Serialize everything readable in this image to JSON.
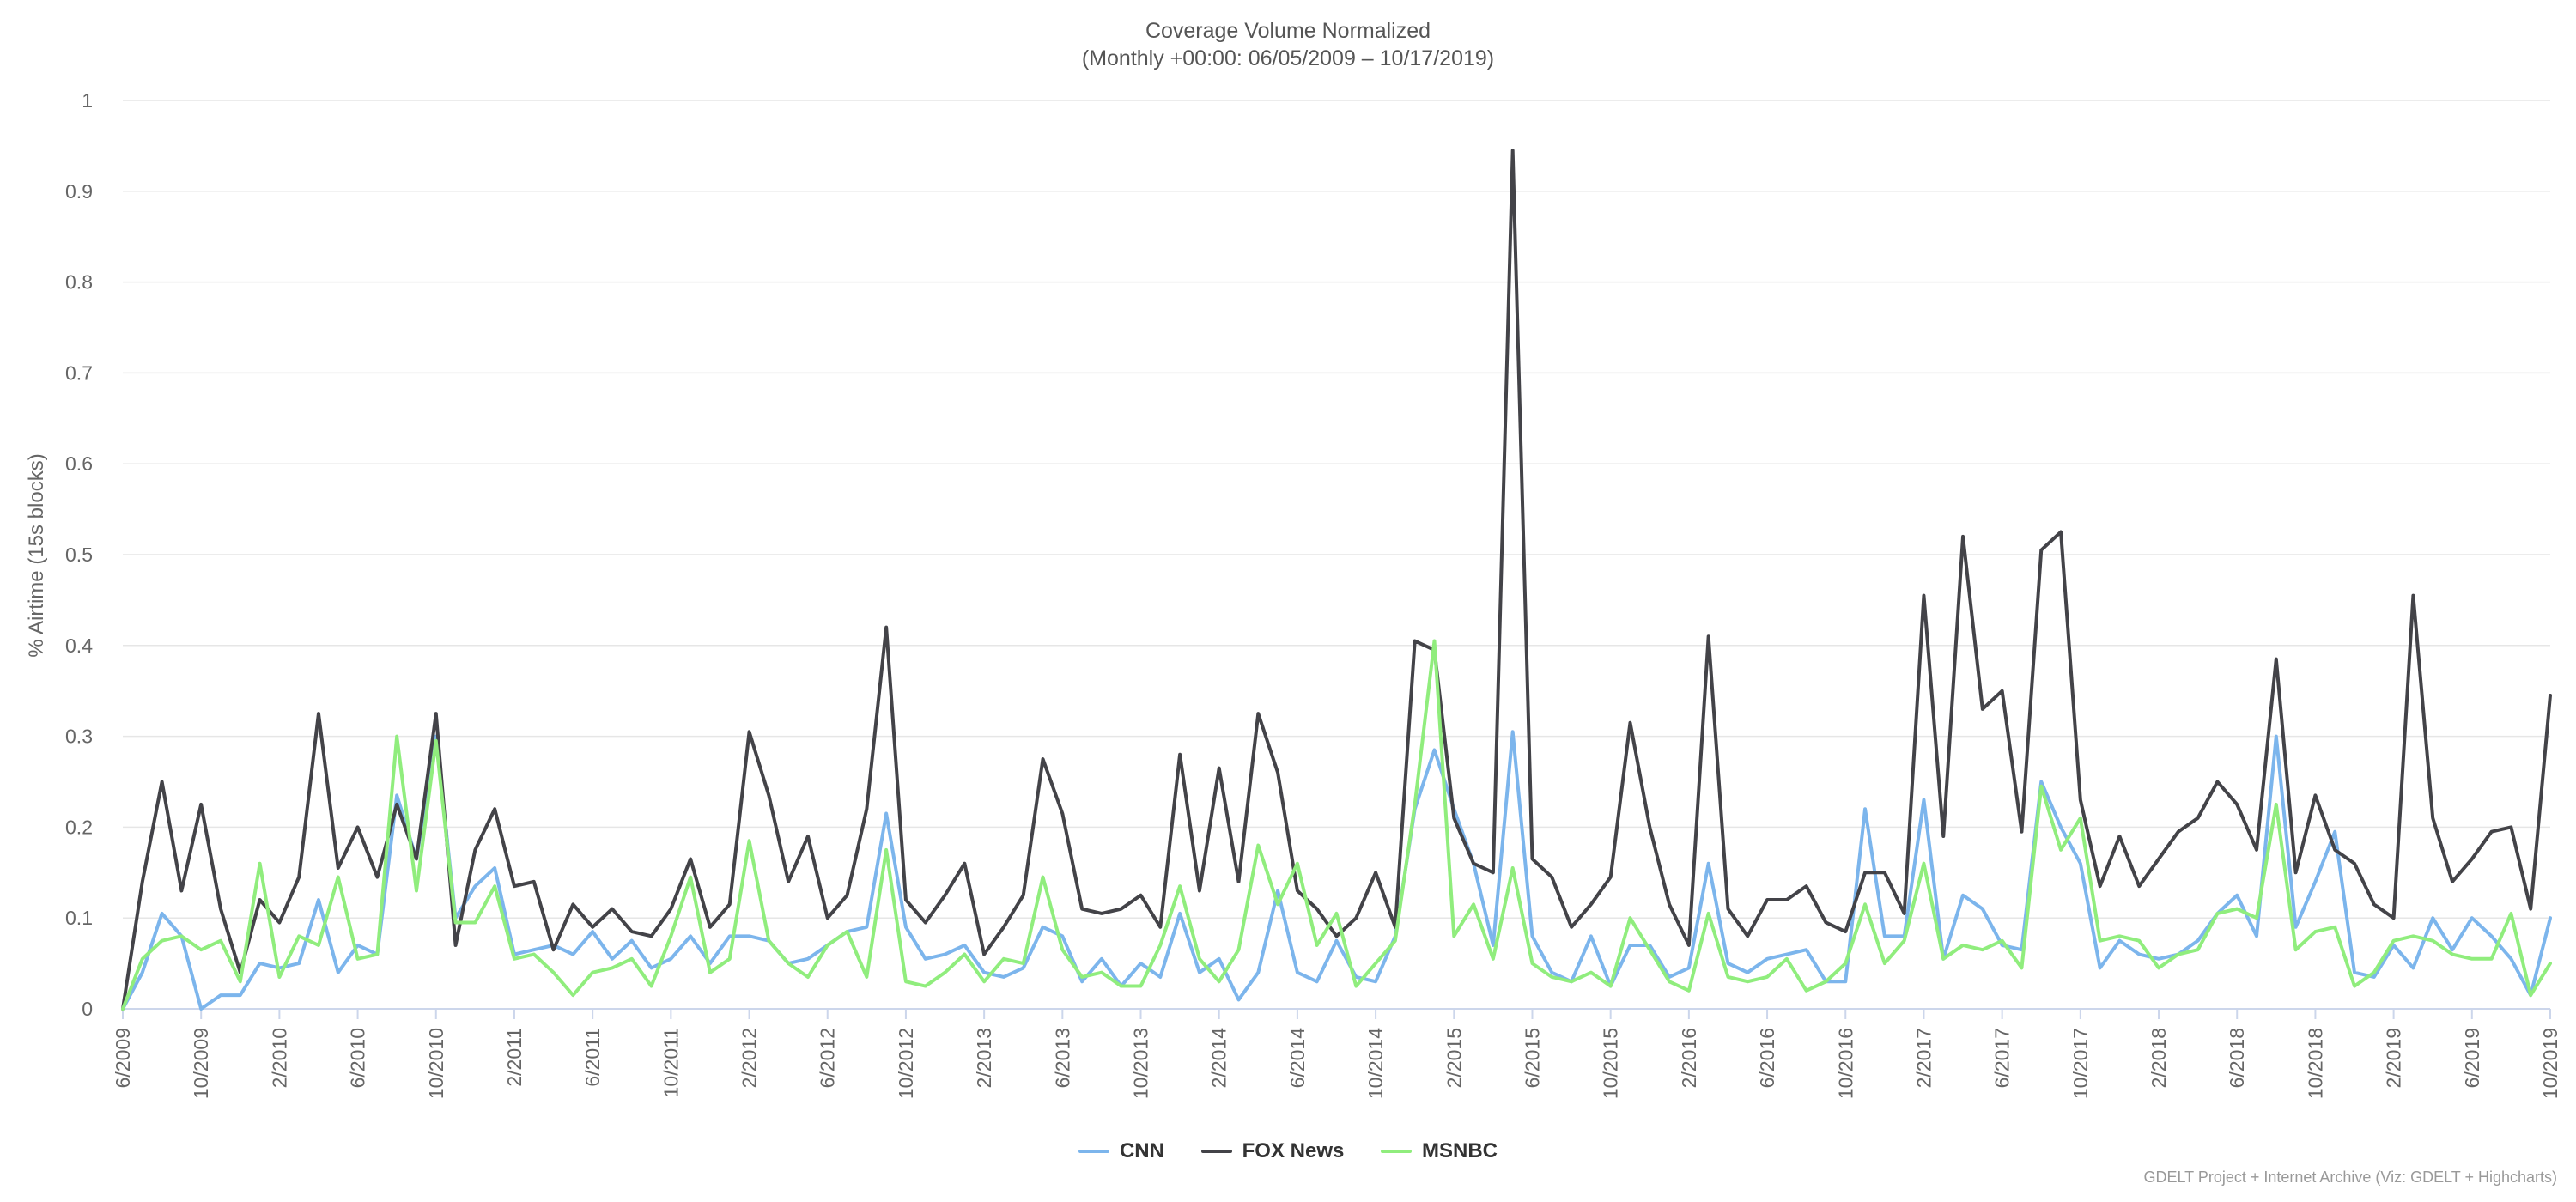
{
  "title_line1": "Coverage Volume Normalized",
  "title_line2": "(Monthly +00:00: 06/05/2009 – 10/17/2019)",
  "credits": "GDELT Project + Internet Archive (Viz: GDELT + Highcharts)",
  "chart_data": {
    "type": "line",
    "ylabel": "% Airtime (15s blocks)",
    "xlabel": "",
    "ylim": [
      0,
      1
    ],
    "yticks": [
      0,
      0.1,
      0.2,
      0.3,
      0.4,
      0.5,
      0.6,
      0.7,
      0.8,
      0.9,
      1
    ],
    "ytick_labels": [
      "0",
      "0.1",
      "0.2",
      "0.3",
      "0.4",
      "0.5",
      "0.6",
      "0.7",
      "0.8",
      "0.9",
      "1"
    ],
    "x_start": "6/2009",
    "x_end": "10/2019",
    "xtick_labels": [
      "6/2009",
      "10/2009",
      "2/2010",
      "6/2010",
      "10/2010",
      "2/2011",
      "6/2011",
      "10/2011",
      "2/2012",
      "6/2012",
      "10/2012",
      "2/2013",
      "6/2013",
      "10/2013",
      "2/2014",
      "6/2014",
      "10/2014",
      "2/2015",
      "6/2015",
      "10/2015",
      "2/2016",
      "6/2016",
      "10/2016",
      "2/2017",
      "6/2017",
      "10/2017",
      "2/2018",
      "6/2018",
      "10/2018",
      "2/2019",
      "6/2019",
      "10/2019"
    ],
    "grid": true,
    "legend_position": "bottom-center",
    "series": [
      {
        "name": "CNN",
        "color": "#7cb5ec",
        "values": [
          0,
          0.04,
          0.105,
          0.08,
          0,
          0.015,
          0.015,
          0.05,
          0.045,
          0.05,
          0.12,
          0.04,
          0.07,
          0.06,
          0.235,
          0.165,
          0.3,
          0.1,
          0.135,
          0.155,
          0.06,
          0.065,
          0.07,
          0.06,
          0.085,
          0.055,
          0.075,
          0.045,
          0.055,
          0.08,
          0.05,
          0.08,
          0.08,
          0.075,
          0.05,
          0.055,
          0.07,
          0.085,
          0.09,
          0.215,
          0.09,
          0.055,
          0.06,
          0.07,
          0.04,
          0.035,
          0.045,
          0.09,
          0.08,
          0.03,
          0.055,
          0.025,
          0.05,
          0.035,
          0.105,
          0.04,
          0.055,
          0.01,
          0.04,
          0.13,
          0.04,
          0.03,
          0.075,
          0.035,
          0.03,
          0.08,
          0.22,
          0.285,
          0.22,
          0.16,
          0.07,
          0.305,
          0.08,
          0.04,
          0.03,
          0.08,
          0.025,
          0.07,
          0.07,
          0.035,
          0.045,
          0.16,
          0.05,
          0.04,
          0.055,
          0.06,
          0.065,
          0.03,
          0.03,
          0.22,
          0.08,
          0.08,
          0.23,
          0.055,
          0.125,
          0.11,
          0.07,
          0.065,
          0.25,
          0.2,
          0.16,
          0.045,
          0.075,
          0.06,
          0.055,
          0.06,
          0.075,
          0.105,
          0.125,
          0.08,
          0.3,
          0.09,
          0.14,
          0.195,
          0.04,
          0.035,
          0.07,
          0.045,
          0.1,
          0.065,
          0.1,
          0.08,
          0.055,
          0.015,
          0.1
        ]
      },
      {
        "name": "FOX News",
        "color": "#434348",
        "values": [
          0,
          0.14,
          0.25,
          0.13,
          0.225,
          0.11,
          0.04,
          0.12,
          0.095,
          0.145,
          0.325,
          0.155,
          0.2,
          0.145,
          0.225,
          0.165,
          0.325,
          0.07,
          0.175,
          0.22,
          0.135,
          0.14,
          0.065,
          0.115,
          0.09,
          0.11,
          0.085,
          0.08,
          0.11,
          0.165,
          0.09,
          0.115,
          0.305,
          0.235,
          0.14,
          0.19,
          0.1,
          0.125,
          0.22,
          0.42,
          0.12,
          0.095,
          0.125,
          0.16,
          0.06,
          0.09,
          0.125,
          0.275,
          0.215,
          0.11,
          0.105,
          0.11,
          0.125,
          0.09,
          0.28,
          0.13,
          0.265,
          0.14,
          0.325,
          0.26,
          0.13,
          0.11,
          0.08,
          0.1,
          0.15,
          0.09,
          0.405,
          0.395,
          0.21,
          0.16,
          0.15,
          0.945,
          0.165,
          0.145,
          0.09,
          0.115,
          0.145,
          0.315,
          0.2,
          0.115,
          0.07,
          0.41,
          0.11,
          0.08,
          0.12,
          0.12,
          0.135,
          0.095,
          0.085,
          0.15,
          0.15,
          0.105,
          0.455,
          0.19,
          0.52,
          0.33,
          0.35,
          0.195,
          0.505,
          0.525,
          0.23,
          0.135,
          0.19,
          0.135,
          0.165,
          0.195,
          0.21,
          0.25,
          0.225,
          0.175,
          0.385,
          0.15,
          0.235,
          0.175,
          0.16,
          0.115,
          0.1,
          0.455,
          0.21,
          0.14,
          0.165,
          0.195,
          0.2,
          0.11,
          0.345
        ]
      },
      {
        "name": "MSNBC",
        "color": "#90ed7d",
        "values": [
          0,
          0.055,
          0.075,
          0.08,
          0.065,
          0.075,
          0.03,
          0.16,
          0.035,
          0.08,
          0.07,
          0.145,
          0.055,
          0.06,
          0.3,
          0.13,
          0.295,
          0.095,
          0.095,
          0.135,
          0.055,
          0.06,
          0.04,
          0.015,
          0.04,
          0.045,
          0.055,
          0.025,
          0.08,
          0.145,
          0.04,
          0.055,
          0.185,
          0.075,
          0.05,
          0.035,
          0.07,
          0.085,
          0.035,
          0.175,
          0.03,
          0.025,
          0.04,
          0.06,
          0.03,
          0.055,
          0.05,
          0.145,
          0.065,
          0.035,
          0.04,
          0.025,
          0.025,
          0.07,
          0.135,
          0.055,
          0.03,
          0.065,
          0.18,
          0.115,
          0.16,
          0.07,
          0.105,
          0.025,
          0.05,
          0.075,
          0.225,
          0.405,
          0.08,
          0.115,
          0.055,
          0.155,
          0.05,
          0.035,
          0.03,
          0.04,
          0.025,
          0.1,
          0.065,
          0.03,
          0.02,
          0.105,
          0.035,
          0.03,
          0.035,
          0.055,
          0.02,
          0.03,
          0.05,
          0.115,
          0.05,
          0.075,
          0.16,
          0.055,
          0.07,
          0.065,
          0.075,
          0.045,
          0.245,
          0.175,
          0.21,
          0.075,
          0.08,
          0.075,
          0.045,
          0.06,
          0.065,
          0.105,
          0.11,
          0.1,
          0.225,
          0.065,
          0.085,
          0.09,
          0.025,
          0.04,
          0.075,
          0.08,
          0.075,
          0.06,
          0.055,
          0.055,
          0.105,
          0.015,
          0.05
        ]
      }
    ]
  }
}
